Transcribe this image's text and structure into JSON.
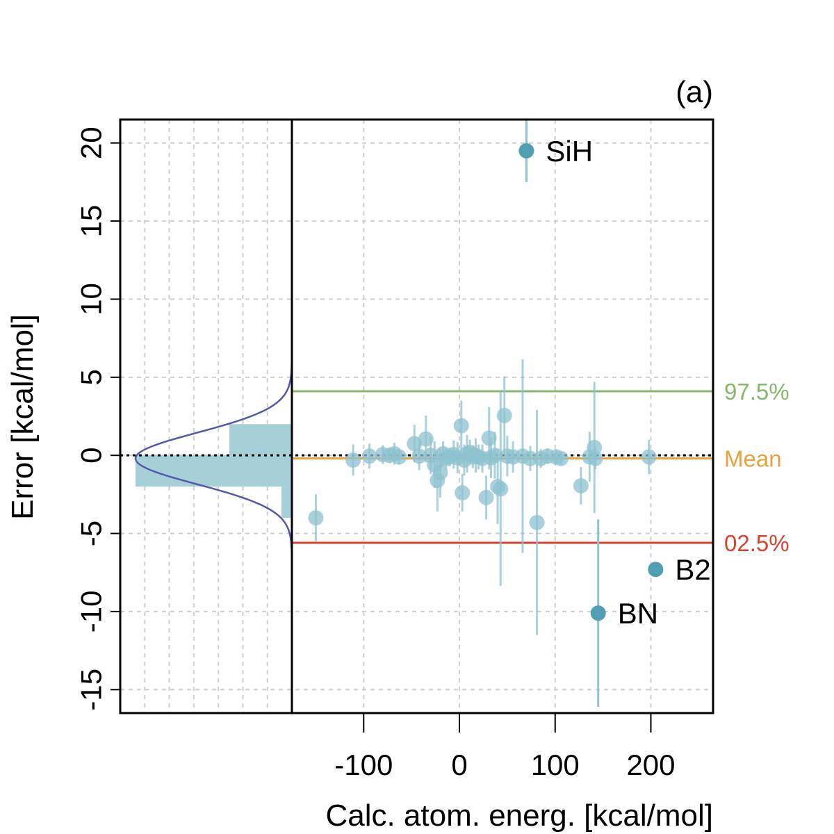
{
  "chart_data": {
    "type": "scatter",
    "panel_tag": "(a)",
    "xlabel": "Calc. atom. energ. [kcal/mol]",
    "ylabel": "Error [kcal/mol]",
    "xlim": [
      -175,
      265
    ],
    "ylim": [
      -16.5,
      21.5
    ],
    "xticks": [
      -100,
      0,
      100,
      200
    ],
    "xtick_labels": [
      "-100",
      "0",
      "100",
      "200"
    ],
    "yticks": [
      -15,
      -10,
      -5,
      0,
      5,
      10,
      15,
      20
    ],
    "ytick_labels": [
      "-15",
      "-10",
      "-5",
      "0",
      "5",
      "10",
      "15",
      "20"
    ],
    "grid": true,
    "colors": {
      "points": "#4f9fb1",
      "points_light": "#8ec2cf",
      "histogram": "#a7cfd8",
      "density_curve": "#5558a8",
      "q97": "#86b86a",
      "mean": "#e8a23c",
      "q02": "#d8432f",
      "zero_line": "#000000"
    },
    "reference_lines": [
      {
        "name": "q97",
        "label": "97.5%",
        "y": 4.1
      },
      {
        "name": "mean",
        "label": "Mean",
        "y": -0.2
      },
      {
        "name": "q02",
        "label": "02.5%",
        "y": -5.6
      }
    ],
    "histogram": {
      "bins": [
        {
          "from": -4,
          "to": -2,
          "count": 2
        },
        {
          "from": -2,
          "to": 0,
          "count": 30
        },
        {
          "from": 0,
          "to": 2,
          "count": 12
        },
        {
          "from": 2,
          "to": 4,
          "count": 0
        }
      ],
      "max_count": 30
    },
    "density": {
      "mean": -0.2,
      "sd": 1.65
    },
    "outliers": [
      {
        "label": "SiH",
        "x": 70,
        "y": 19.5,
        "err": 2.0
      },
      {
        "label": "B2",
        "x": 205,
        "y": -7.3,
        "err": 0.4
      },
      {
        "label": "BN",
        "x": 145,
        "y": -10.1,
        "err": 6.0
      }
    ],
    "points": [
      {
        "x": -111,
        "y": -0.3,
        "err": 1.0
      },
      {
        "x": -94,
        "y": -0.05,
        "err": 0.8
      },
      {
        "x": -80,
        "y": 0.05,
        "err": 0.6
      },
      {
        "x": -73,
        "y": 0.0,
        "err": 0.5
      },
      {
        "x": -68,
        "y": 0.1,
        "err": 0.7
      },
      {
        "x": -63,
        "y": -0.1,
        "err": 0.5
      },
      {
        "x": -47,
        "y": 0.75,
        "err": 1.2
      },
      {
        "x": -42,
        "y": -0.05,
        "err": 0.9
      },
      {
        "x": -35,
        "y": 1.05,
        "err": 1.5
      },
      {
        "x": -30,
        "y": 0.0,
        "err": 1.2
      },
      {
        "x": -26,
        "y": -0.6,
        "err": 1.5
      },
      {
        "x": -23,
        "y": -1.6,
        "err": 2.0
      },
      {
        "x": -20,
        "y": -1.1,
        "err": 1.6
      },
      {
        "x": -17,
        "y": 0.1,
        "err": 0.8
      },
      {
        "x": -14,
        "y": -0.2,
        "err": 0.7
      },
      {
        "x": -10,
        "y": -0.1,
        "err": 0.6
      },
      {
        "x": -6,
        "y": 0.05,
        "err": 0.9
      },
      {
        "x": -2,
        "y": -0.15,
        "err": 1.0
      },
      {
        "x": 2,
        "y": 1.9,
        "err": 1.6
      },
      {
        "x": 3,
        "y": -2.4,
        "err": 1.2
      },
      {
        "x": 5,
        "y": -0.3,
        "err": 1.0
      },
      {
        "x": 8,
        "y": 0.1,
        "err": 1.2
      },
      {
        "x": 11,
        "y": 0.2,
        "err": 0.8
      },
      {
        "x": 14,
        "y": -0.1,
        "err": 0.7
      },
      {
        "x": 17,
        "y": 0.0,
        "err": 1.1
      },
      {
        "x": 20,
        "y": -0.1,
        "err": 0.8
      },
      {
        "x": 24,
        "y": -0.2,
        "err": 0.9
      },
      {
        "x": 28,
        "y": -2.7,
        "err": 1.4
      },
      {
        "x": 31,
        "y": 1.1,
        "err": 2.0
      },
      {
        "x": 33,
        "y": -0.15,
        "err": 1.3
      },
      {
        "x": 37,
        "y": 0.0,
        "err": 1.5
      },
      {
        "x": 40,
        "y": -2.0,
        "err": 2.4
      },
      {
        "x": 43,
        "y": -2.15,
        "err": 6.2
      },
      {
        "x": 47,
        "y": 2.55,
        "err": 2.5
      },
      {
        "x": 50,
        "y": -0.05,
        "err": 1.3
      },
      {
        "x": 56,
        "y": -0.1,
        "err": 1.0
      },
      {
        "x": 66,
        "y": -0.05,
        "err": 6.2
      },
      {
        "x": 74,
        "y": -0.2,
        "err": 0.8
      },
      {
        "x": 81,
        "y": -4.3,
        "err": 7.2
      },
      {
        "x": 85,
        "y": -0.2,
        "err": 0.6
      },
      {
        "x": 92,
        "y": -0.05,
        "err": 0.5
      },
      {
        "x": 101,
        "y": -0.1,
        "err": 0.5
      },
      {
        "x": 106,
        "y": -0.2,
        "err": 0.4
      },
      {
        "x": 127,
        "y": -1.95,
        "err": 1.2
      },
      {
        "x": 136,
        "y": -0.1,
        "err": 1.6
      },
      {
        "x": 141,
        "y": 0.5,
        "err": 4.2
      },
      {
        "x": 142,
        "y": -0.2,
        "err": 0.7
      },
      {
        "x": 198,
        "y": -0.1,
        "err": 1.1
      },
      {
        "x": -150,
        "y": -4.0,
        "err": 1.5
      }
    ]
  }
}
